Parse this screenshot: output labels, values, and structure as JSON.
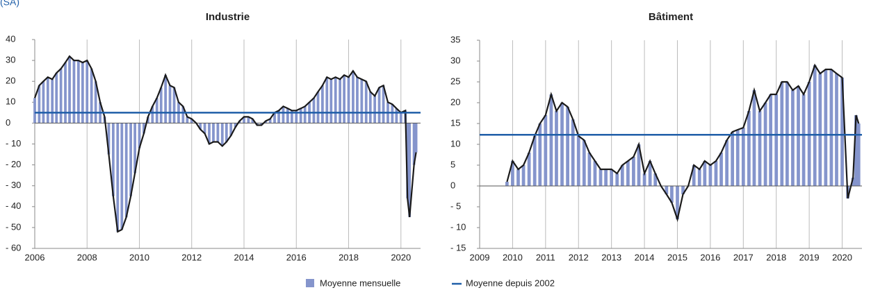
{
  "subtitle": "(SA)",
  "chart_data": [
    {
      "type": "bar",
      "title": "Industrie",
      "x": [
        2006,
        2006.17,
        2006.33,
        2006.5,
        2006.67,
        2006.83,
        2007,
        2007.17,
        2007.33,
        2007.5,
        2007.67,
        2007.83,
        2008,
        2008.17,
        2008.33,
        2008.5,
        2008.67,
        2008.83,
        2009,
        2009.17,
        2009.33,
        2009.5,
        2009.67,
        2009.83,
        2010,
        2010.17,
        2010.33,
        2010.5,
        2010.67,
        2010.83,
        2011,
        2011.17,
        2011.33,
        2011.5,
        2011.67,
        2011.83,
        2012,
        2012.17,
        2012.33,
        2012.5,
        2012.67,
        2012.83,
        2013,
        2013.17,
        2013.33,
        2013.5,
        2013.67,
        2013.83,
        2014,
        2014.17,
        2014.33,
        2014.5,
        2014.67,
        2014.83,
        2015,
        2015.17,
        2015.33,
        2015.5,
        2015.67,
        2015.83,
        2016,
        2016.17,
        2016.33,
        2016.5,
        2016.67,
        2016.83,
        2017,
        2017.17,
        2017.33,
        2017.5,
        2017.67,
        2017.83,
        2018,
        2018.17,
        2018.33,
        2018.5,
        2018.67,
        2018.83,
        2019,
        2019.17,
        2019.33,
        2019.5,
        2019.67,
        2019.83,
        2020,
        2020.17,
        2020.25,
        2020.33,
        2020.5,
        2020.58
      ],
      "series": [
        {
          "name": "Moyenne mensuelle",
          "color": "#8595cc",
          "values": [
            12,
            18,
            20,
            22,
            21,
            24,
            26,
            29,
            32,
            30,
            30,
            29,
            30,
            26,
            20,
            10,
            3,
            -15,
            -35,
            -52,
            -51,
            -45,
            -35,
            -24,
            -12,
            -5,
            3,
            8,
            12,
            17,
            23,
            18,
            17,
            10,
            8,
            3,
            2,
            0,
            -3,
            -5,
            -10,
            -9,
            -9,
            -11,
            -9,
            -6,
            -2,
            1,
            3,
            3,
            2,
            -1,
            -1,
            1,
            2,
            5,
            6,
            8,
            7,
            6,
            6,
            7,
            8,
            10,
            12,
            15,
            18,
            22,
            21,
            22,
            21,
            23,
            22,
            25,
            22,
            21,
            20,
            15,
            13,
            17,
            18,
            10,
            9,
            7,
            5,
            6,
            -36,
            -45,
            -20,
            -14
          ]
        }
      ],
      "average": {
        "name": "Moyenne depuis 2002",
        "color": "#1f5ea8",
        "value": 5
      },
      "xlim": [
        2006,
        2020.75
      ],
      "xticks": [
        2006,
        2008,
        2010,
        2012,
        2014,
        2016,
        2018,
        2020
      ],
      "ylim": [
        -60,
        40
      ],
      "yticks": [
        {
          "value": -60,
          "label": "- 60"
        },
        {
          "value": -50,
          "label": "- 50"
        },
        {
          "value": -40,
          "label": "- 40"
        },
        {
          "value": -30,
          "label": "- 30"
        },
        {
          "value": -20,
          "label": "- 20"
        },
        {
          "value": -10,
          "label": "- 10"
        },
        0,
        10,
        20,
        30,
        40
      ]
    },
    {
      "type": "bar",
      "title": "Bâtiment",
      "x": [
        2009.83,
        2010,
        2010.17,
        2010.33,
        2010.5,
        2010.67,
        2010.83,
        2011,
        2011.17,
        2011.33,
        2011.5,
        2011.67,
        2011.83,
        2012,
        2012.17,
        2012.33,
        2012.5,
        2012.67,
        2012.83,
        2013,
        2013.17,
        2013.33,
        2013.5,
        2013.67,
        2013.83,
        2014,
        2014.17,
        2014.33,
        2014.5,
        2014.67,
        2014.83,
        2015,
        2015.17,
        2015.33,
        2015.5,
        2015.67,
        2015.83,
        2016,
        2016.17,
        2016.33,
        2016.5,
        2016.67,
        2016.83,
        2017,
        2017.17,
        2017.33,
        2017.5,
        2017.67,
        2017.83,
        2018,
        2018.17,
        2018.33,
        2018.5,
        2018.67,
        2018.83,
        2019,
        2019.17,
        2019.33,
        2019.5,
        2019.67,
        2019.83,
        2020,
        2020.17,
        2020.33,
        2020.42,
        2020.5
      ],
      "series": [
        {
          "color": "#8595cc",
          "values": [
            1,
            6,
            4,
            5,
            8,
            12,
            15,
            17,
            22,
            18,
            20,
            19,
            16,
            12,
            11,
            8,
            6,
            4,
            4,
            4,
            3,
            5,
            6,
            7,
            10,
            3,
            6,
            3,
            0,
            -2,
            -4,
            -8,
            -2,
            0,
            5,
            4,
            6,
            5,
            6,
            8,
            11,
            13,
            13.5,
            14,
            18,
            23,
            18,
            20,
            22,
            22,
            25,
            25,
            23,
            24,
            22,
            25,
            29,
            27,
            28,
            28,
            27,
            26,
            -3,
            2,
            17,
            15
          ]
        }
      ],
      "average": {
        "color": "#1f5ea8",
        "value": 12.3
      },
      "xlim": [
        2009,
        2020.6
      ],
      "xticks": [
        2009,
        2010,
        2011,
        2012,
        2013,
        2014,
        2015,
        2016,
        2017,
        2018,
        2019,
        2020
      ],
      "ylim": [
        -15,
        35
      ],
      "yticks": [
        {
          "value": -15,
          "label": "- 15"
        },
        {
          "value": -10,
          "label": "- 10"
        },
        {
          "value": -5,
          "label": "- 5"
        },
        0,
        5,
        10,
        15,
        20,
        25,
        30,
        35
      ]
    }
  ]
}
